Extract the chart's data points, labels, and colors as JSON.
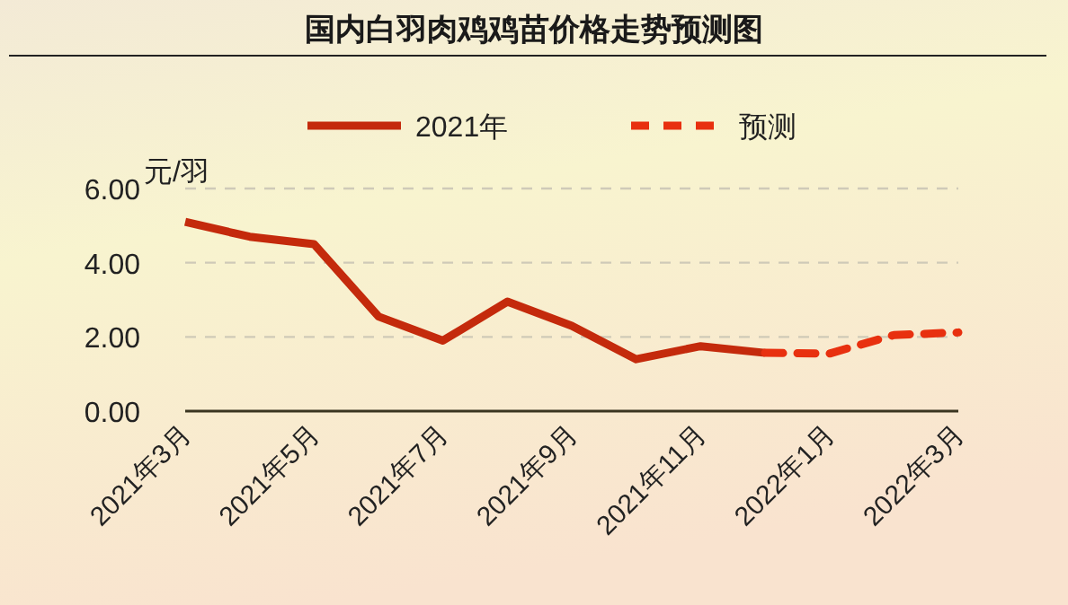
{
  "chart_data": {
    "type": "line",
    "title": "国内白羽肉鸡鸡苗价格走势预测图",
    "ylabel": "元/羽",
    "categories": [
      "2021年3月",
      null,
      "2021年5月",
      null,
      "2021年7月",
      null,
      "2021年9月",
      null,
      "2021年11月",
      null,
      "2022年1月",
      null,
      "2022年3月"
    ],
    "series": [
      {
        "name": "2021年",
        "color": "#c42a0c",
        "line_style": "solid",
        "values": [
          5.1,
          4.7,
          4.5,
          2.55,
          1.9,
          2.95,
          2.3,
          1.4,
          1.75,
          1.57,
          null,
          null,
          null
        ]
      },
      {
        "name": "预测",
        "color": "#e8300f",
        "line_style": "dashed",
        "values": [
          null,
          null,
          null,
          null,
          null,
          null,
          null,
          null,
          null,
          1.57,
          1.55,
          2.05,
          2.12
        ]
      }
    ],
    "ylim": [
      0,
      6
    ],
    "yticks": [
      {
        "value": 0,
        "label": "0.00"
      },
      {
        "value": 2,
        "label": "2.00"
      },
      {
        "value": 4,
        "label": "4.00"
      },
      {
        "value": 6,
        "label": "6.00"
      }
    ],
    "grid": "y",
    "legend": "top"
  }
}
